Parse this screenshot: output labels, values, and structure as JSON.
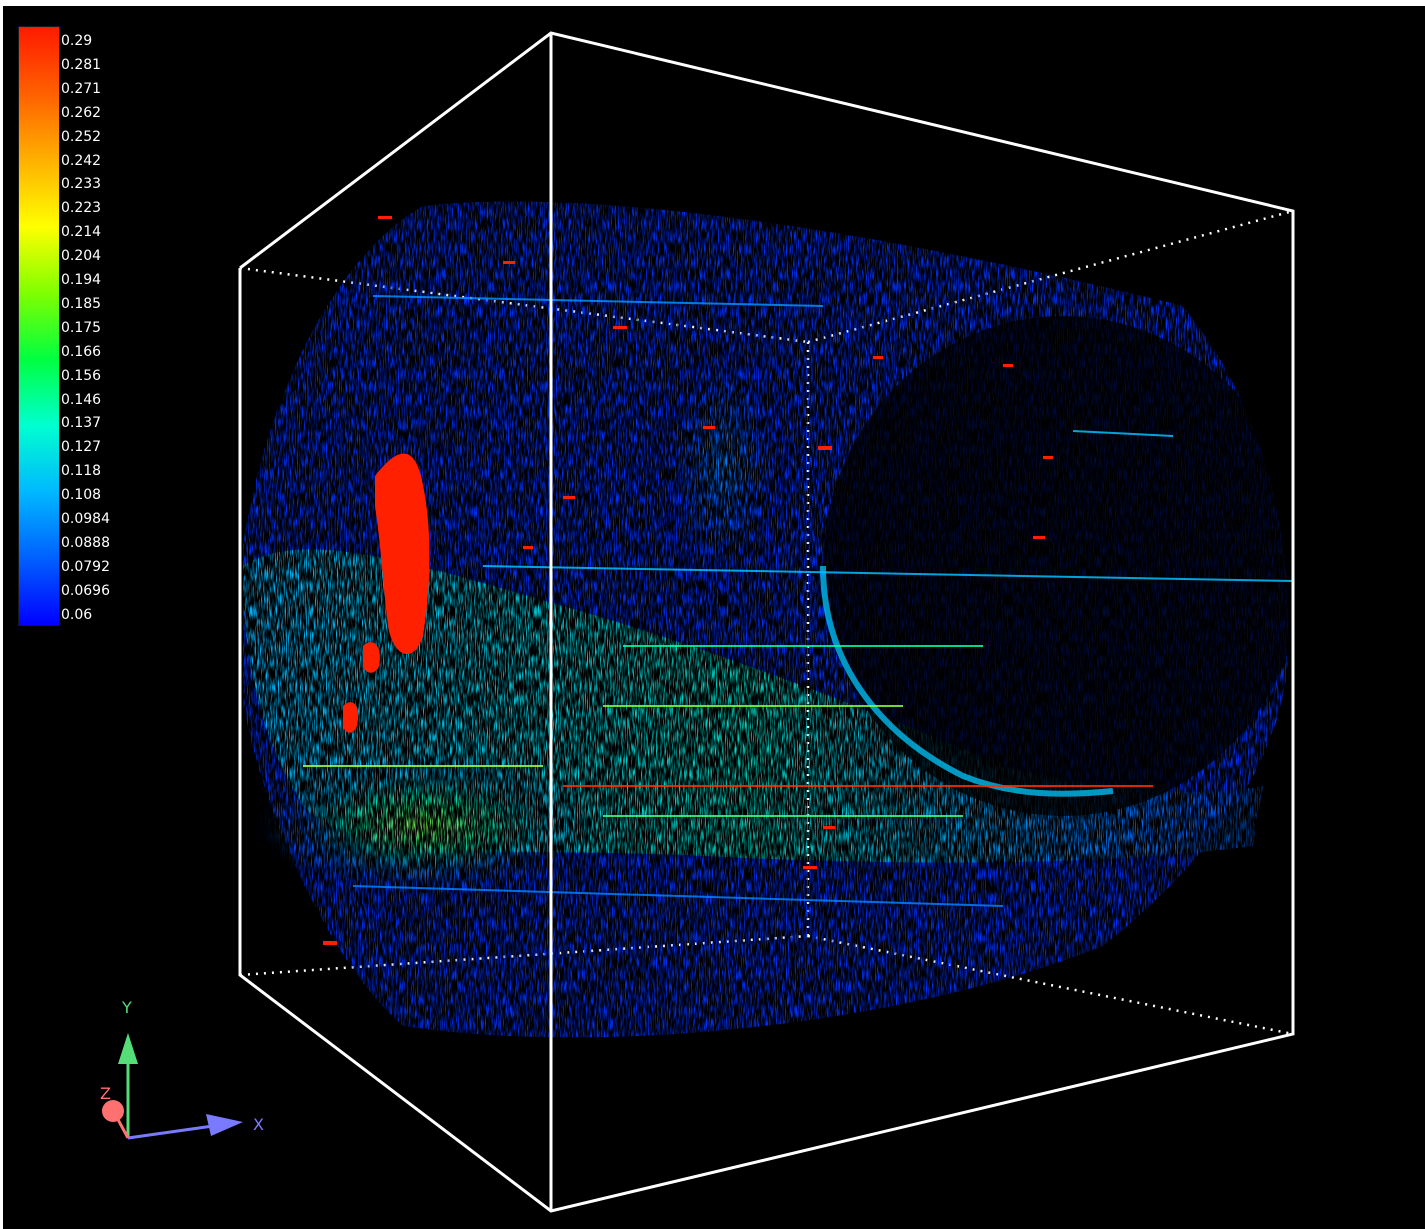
{
  "colorbar": {
    "labels": [
      "0.29",
      "0.281",
      "0.271",
      "0.262",
      "0.252",
      "0.242",
      "0.233",
      "0.223",
      "0.214",
      "0.204",
      "0.194",
      "0.185",
      "0.175",
      "0.166",
      "0.156",
      "0.146",
      "0.137",
      "0.127",
      "0.118",
      "0.108",
      "0.0984",
      "0.0888",
      "0.0792",
      "0.0696",
      "0.06"
    ],
    "stops": [
      "#0000ff",
      "#0060ff",
      "#00b8ff",
      "#00ffd0",
      "#00ff40",
      "#80ff00",
      "#ffff00",
      "#ffb000",
      "#ff6000",
      "#ff1a00"
    ]
  },
  "colors": {
    "background": "#000000",
    "bounding_box": "#ffffff",
    "axis_x": "#7a7aff",
    "axis_y": "#55dd77",
    "axis_z": "#ff7070"
  },
  "icons": {
    "orientation_gizmo": "xyz-axes-icon"
  }
}
